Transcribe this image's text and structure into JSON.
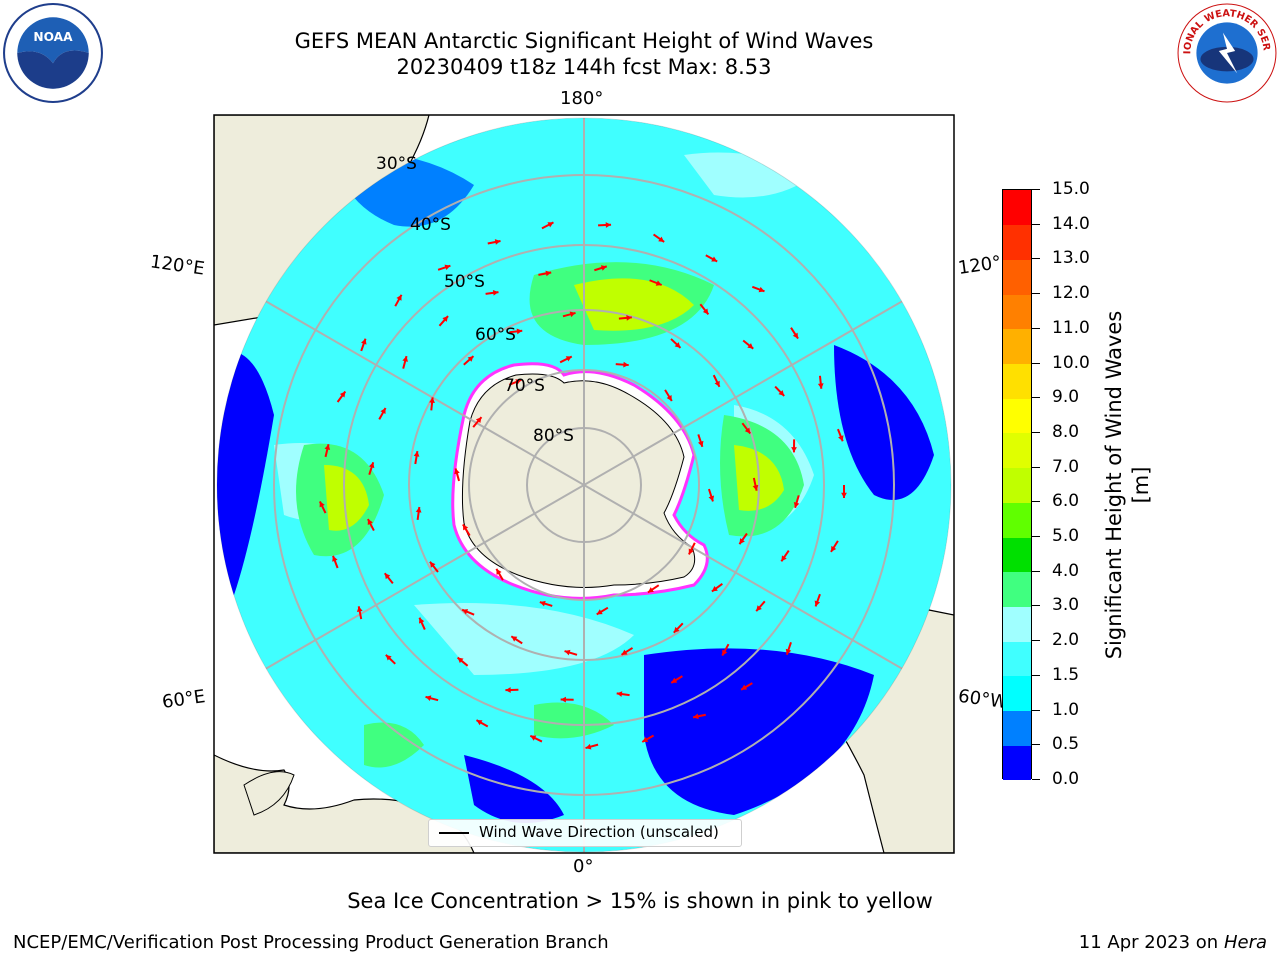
{
  "title": {
    "line1": "GEFS MEAN Antarctic Significant Height of Wind Waves",
    "line2": "20230409 t18z 144h fcst   Max: 8.53"
  },
  "map": {
    "projection": "south-polar-stereographic",
    "longitude_labels": {
      "top": "180°",
      "bottom": "0°",
      "left_upper": "120°E",
      "left_lower": "60°E",
      "right_upper": "120°",
      "right_lower": "60°W"
    },
    "latitude_labels": [
      "30°S",
      "40°S",
      "50°S",
      "60°S",
      "70°S",
      "80°S"
    ],
    "legend": "Wind Wave Direction (unscaled)",
    "arrow_color": "#ff0000",
    "land_color": "#eeeddc",
    "sea_ice_edge_colors": [
      "#ff33ff",
      "#ffff00"
    ]
  },
  "colorbar": {
    "label": "Significant Height of Wind Waves [m]",
    "ticks": [
      "0.0",
      "0.5",
      "1.0",
      "1.5",
      "2.0",
      "3.0",
      "4.0",
      "5.0",
      "6.0",
      "7.0",
      "8.0",
      "9.0",
      "10.0",
      "11.0",
      "12.0",
      "13.0",
      "14.0",
      "15.0"
    ],
    "colors": [
      "#0000ff",
      "#0080ff",
      "#00ffff",
      "#40ffff",
      "#a0ffff",
      "#40ff80",
      "#00e000",
      "#60ff00",
      "#c0ff00",
      "#e0ff00",
      "#ffff00",
      "#ffe000",
      "#ffb000",
      "#ff8000",
      "#ff6000",
      "#ff3000",
      "#ff0000"
    ]
  },
  "footer": {
    "note": "Sea Ice Concentration > 15% is shown in pink to yellow",
    "left": "NCEP/EMC/Verification Post Processing Product Generation Branch",
    "right_date": "11 Apr 2023 on ",
    "right_host": "Hera"
  },
  "logos": {
    "left": "NOAA",
    "right": "NATIONAL WEATHER SERVICE"
  }
}
